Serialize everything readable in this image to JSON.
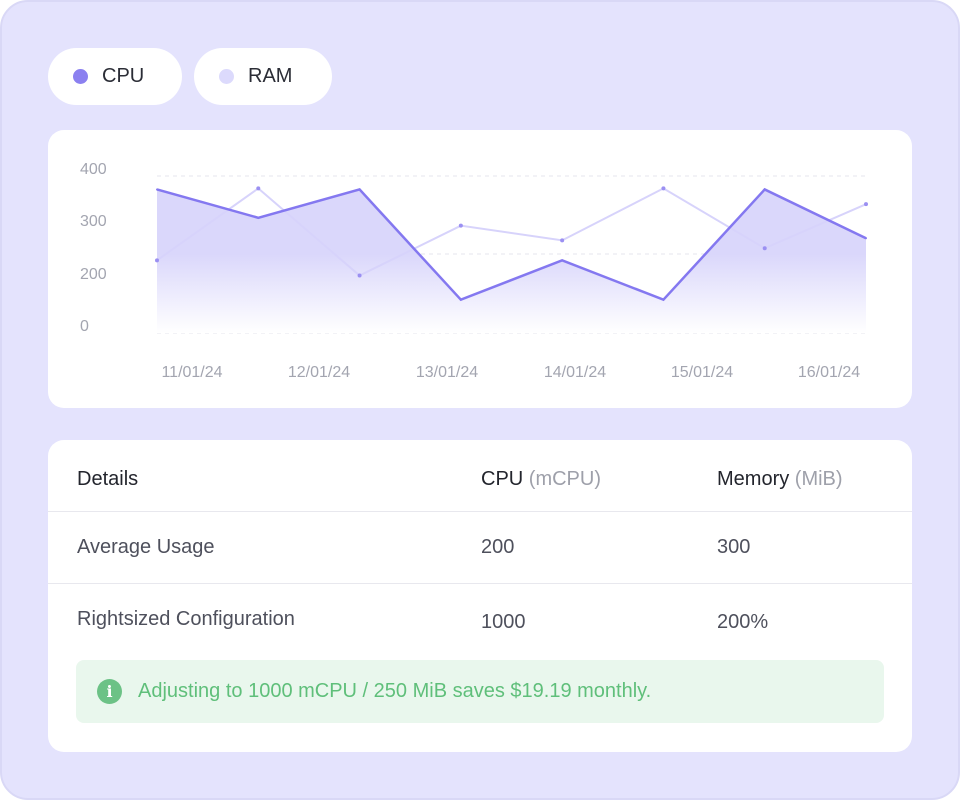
{
  "legend": [
    {
      "label": "CPU",
      "color": "#8b80f0"
    },
    {
      "label": "RAM",
      "color": "#dcdafc"
    }
  ],
  "chart_data": {
    "type": "line",
    "categories": [
      "11/01/24",
      "12/01/24",
      "13/01/24",
      "14/01/24",
      "15/01/24",
      "16/01/24"
    ],
    "y_ticks": [
      "400",
      "300",
      "200",
      "0"
    ],
    "series": [
      {
        "name": "CPU",
        "color": "#8478f0",
        "fill": "area-gradient",
        "points": [
          362,
          308,
          362,
          152,
          227,
          152,
          362,
          269
        ]
      },
      {
        "name": "RAM",
        "color": "#d7d3fb",
        "points": [
          227,
          364,
          198,
          293,
          265,
          364,
          250,
          334
        ]
      }
    ],
    "grid": "dashed horizontal"
  },
  "table": {
    "headers": {
      "details": "Details",
      "cpu": "CPU",
      "cpu_unit": "(mCPU)",
      "memory": "Memory",
      "memory_unit": "(MiB)"
    },
    "rows": [
      {
        "label": "Average Usage",
        "cpu": "200",
        "memory": "300"
      },
      {
        "label": "Rightsized Configuration",
        "cpu": "1000",
        "memory": "200%"
      }
    ]
  },
  "info": {
    "icon": "info-icon",
    "text": "Adjusting to 1000 mCPU / 250 MiB saves $19.19 monthly."
  }
}
